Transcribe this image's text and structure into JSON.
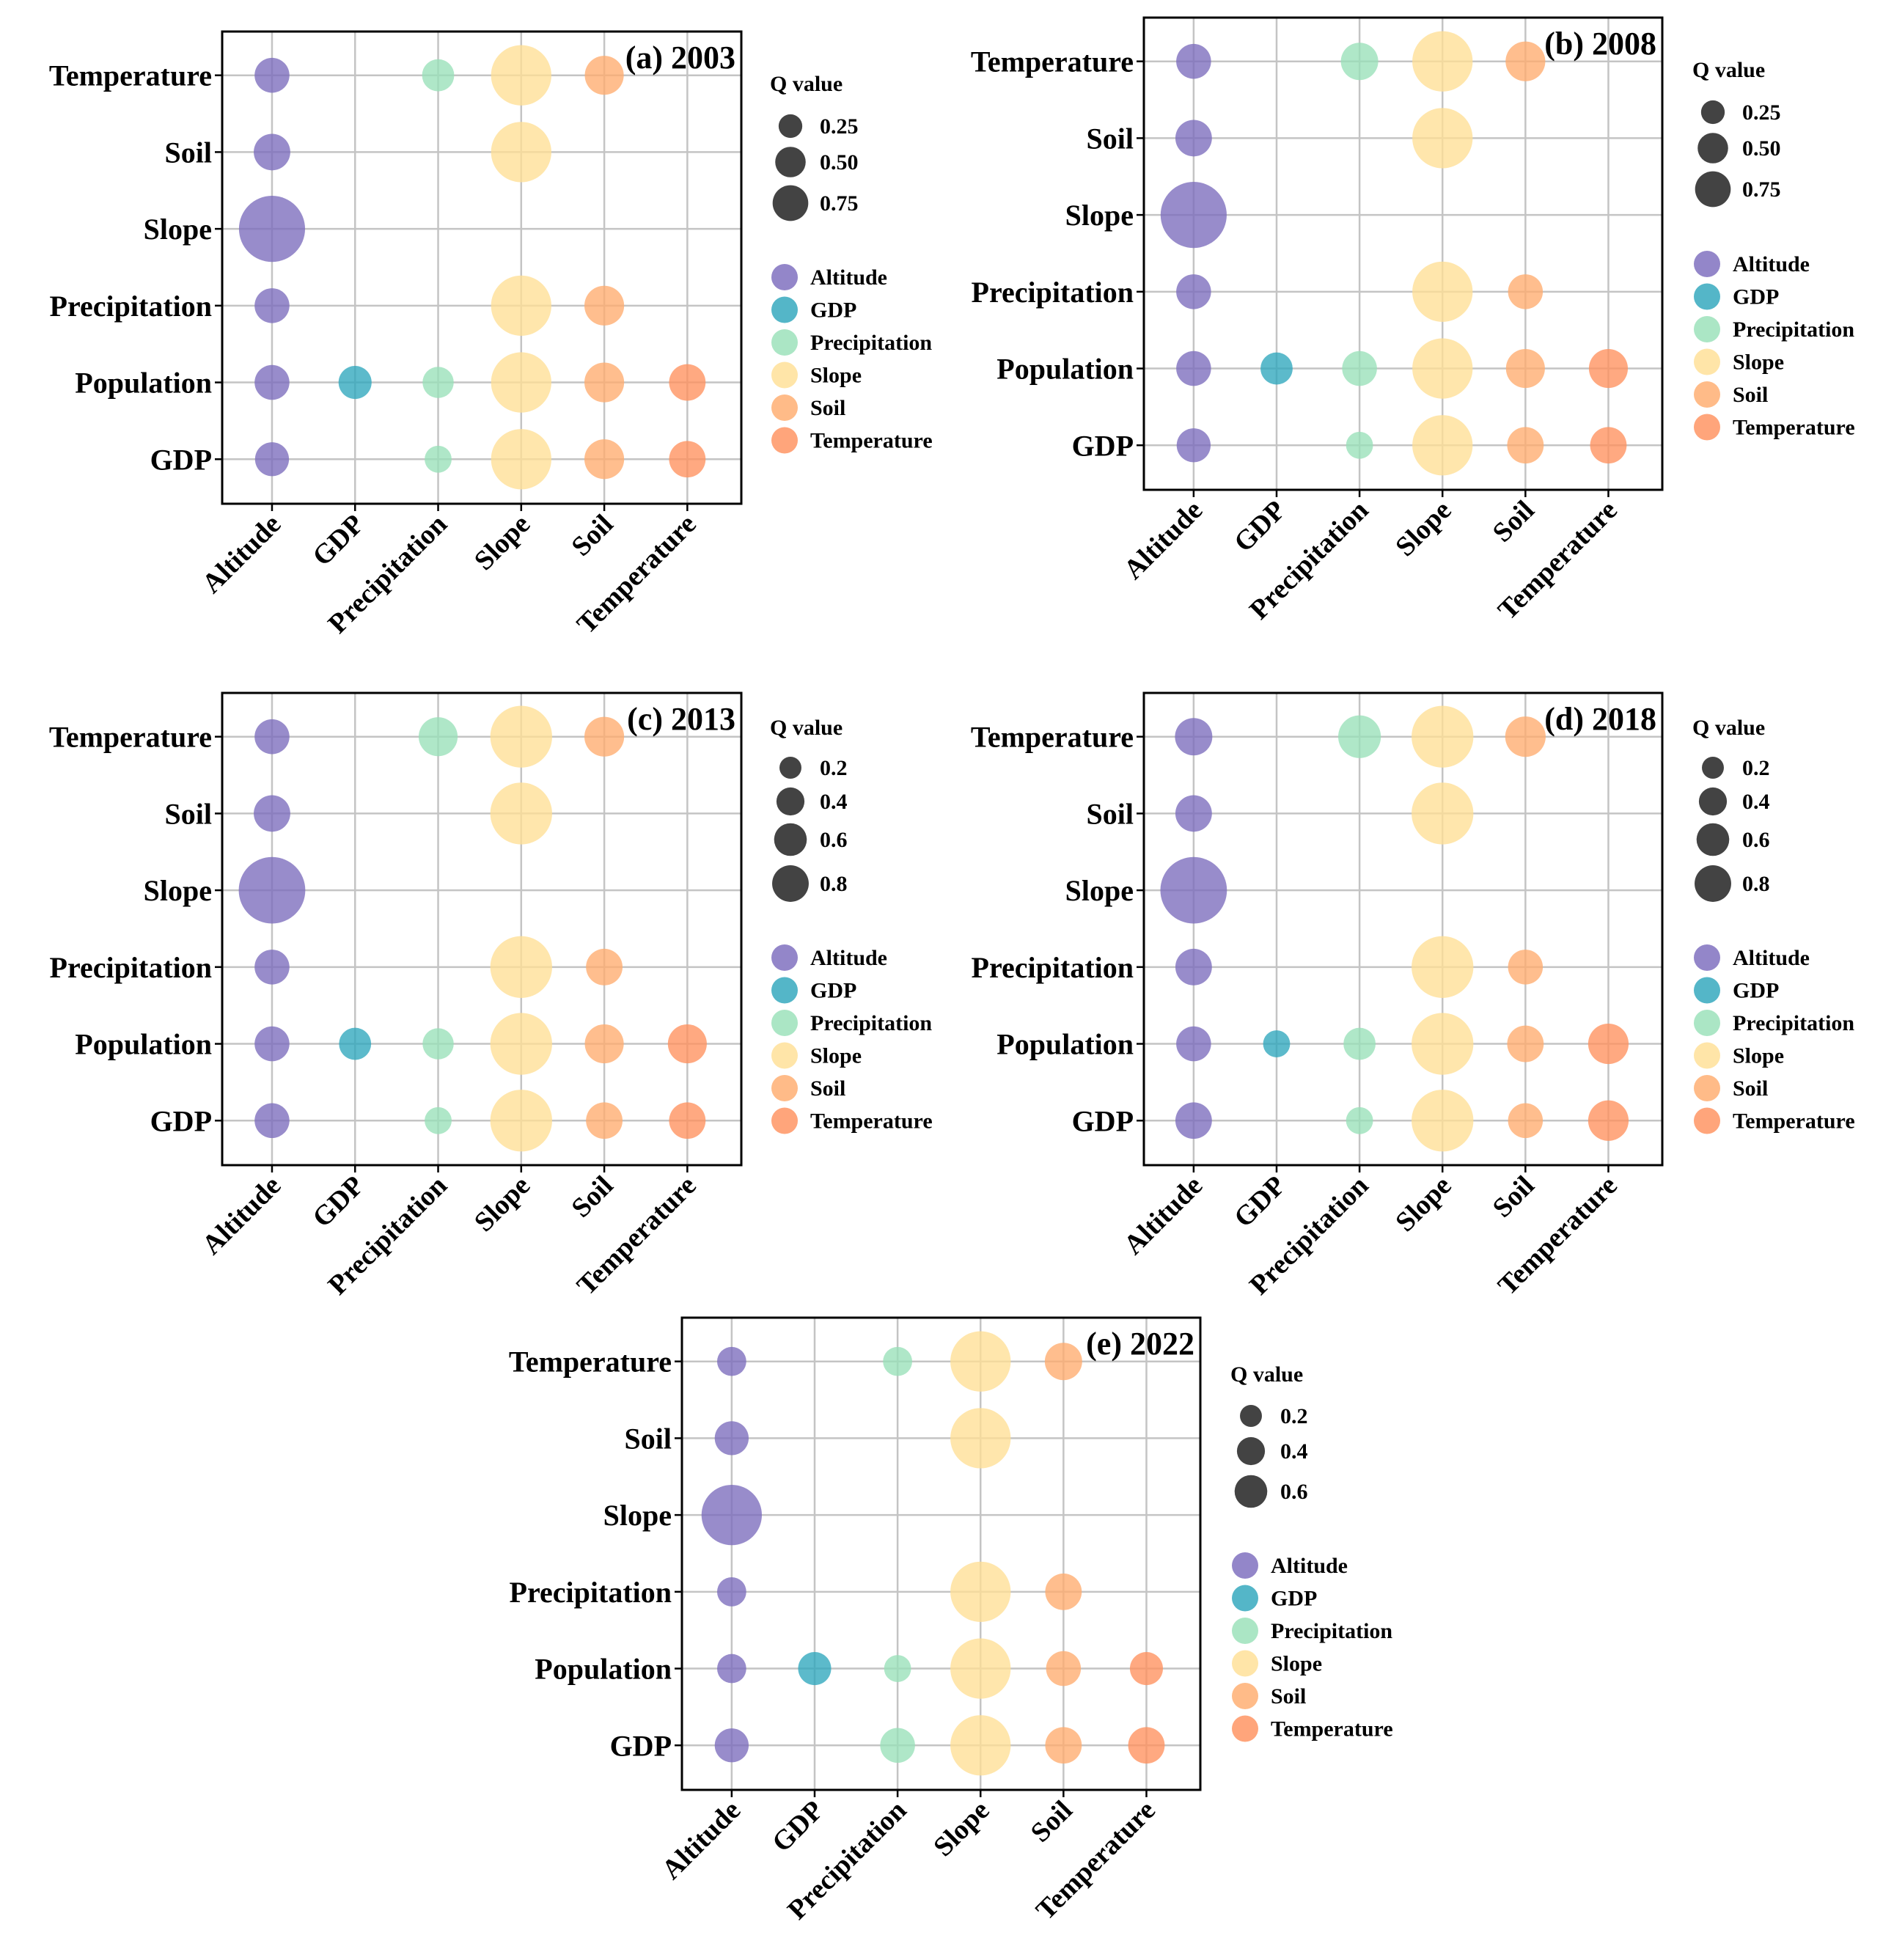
{
  "figure_title": "Interaction detector Q values by year",
  "colors": {
    "Altitude": "#7b6bbd",
    "GDP": "#2ea6bc",
    "Precipitation": "#99e0b8",
    "Slope": "#ffdf95",
    "Soil": "#ffac6e",
    "Temperature": "#ff915e",
    "size_legend_fill": "#333333"
  },
  "chart_data": [
    {
      "type": "scatter",
      "subtype": "bubble",
      "title": "(a) 2003",
      "x_categories": [
        "Altitude",
        "GDP",
        "Precipitation",
        "Slope",
        "Soil",
        "Temperature"
      ],
      "y_categories": [
        "GDP",
        "Population",
        "Precipitation",
        "Slope",
        "Soil",
        "Temperature"
      ],
      "size_legend": {
        "title": "Q value",
        "values": [
          0.25,
          0.5,
          0.75
        ],
        "labels": [
          "0.25",
          "0.50",
          "0.75"
        ]
      },
      "color_legend": [
        "Altitude",
        "GDP",
        "Precipitation",
        "Slope",
        "Soil",
        "Temperature"
      ],
      "points": [
        {
          "x": "Altitude",
          "y": "Temperature",
          "q": 0.2
        },
        {
          "x": "Precipitation",
          "y": "Temperature",
          "q": 0.17
        },
        {
          "x": "Slope",
          "y": "Temperature",
          "q": 0.6
        },
        {
          "x": "Soil",
          "y": "Temperature",
          "q": 0.25
        },
        {
          "x": "Altitude",
          "y": "Soil",
          "q": 0.22
        },
        {
          "x": "Slope",
          "y": "Soil",
          "q": 0.6
        },
        {
          "x": "Altitude",
          "y": "Slope",
          "q": 0.72
        },
        {
          "x": "Altitude",
          "y": "Precipitation",
          "q": 0.2
        },
        {
          "x": "Slope",
          "y": "Precipitation",
          "q": 0.6
        },
        {
          "x": "Soil",
          "y": "Precipitation",
          "q": 0.26
        },
        {
          "x": "Altitude",
          "y": "Population",
          "q": 0.2
        },
        {
          "x": "GDP",
          "y": "Population",
          "q": 0.18
        },
        {
          "x": "Precipitation",
          "y": "Population",
          "q": 0.16
        },
        {
          "x": "Slope",
          "y": "Population",
          "q": 0.6
        },
        {
          "x": "Soil",
          "y": "Population",
          "q": 0.26
        },
        {
          "x": "Temperature",
          "y": "Population",
          "q": 0.22
        },
        {
          "x": "Altitude",
          "y": "GDP",
          "q": 0.19
        },
        {
          "x": "Precipitation",
          "y": "GDP",
          "q": 0.12
        },
        {
          "x": "Slope",
          "y": "GDP",
          "q": 0.6
        },
        {
          "x": "Soil",
          "y": "GDP",
          "q": 0.26
        },
        {
          "x": "Temperature",
          "y": "GDP",
          "q": 0.22
        }
      ]
    },
    {
      "type": "scatter",
      "subtype": "bubble",
      "title": "(b) 2008",
      "x_categories": [
        "Altitude",
        "GDP",
        "Precipitation",
        "Slope",
        "Soil",
        "Temperature"
      ],
      "y_categories": [
        "GDP",
        "Population",
        "Precipitation",
        "Slope",
        "Soil",
        "Temperature"
      ],
      "size_legend": {
        "title": "Q value",
        "values": [
          0.25,
          0.5,
          0.75
        ],
        "labels": [
          "0.25",
          "0.50",
          "0.75"
        ]
      },
      "color_legend": [
        "Altitude",
        "GDP",
        "Precipitation",
        "Slope",
        "Soil",
        "Temperature"
      ],
      "points": [
        {
          "x": "Altitude",
          "y": "Temperature",
          "q": 0.2
        },
        {
          "x": "Precipitation",
          "y": "Temperature",
          "q": 0.23
        },
        {
          "x": "Slope",
          "y": "Temperature",
          "q": 0.6
        },
        {
          "x": "Soil",
          "y": "Temperature",
          "q": 0.26
        },
        {
          "x": "Altitude",
          "y": "Soil",
          "q": 0.22
        },
        {
          "x": "Slope",
          "y": "Soil",
          "q": 0.6
        },
        {
          "x": "Altitude",
          "y": "Slope",
          "q": 0.72
        },
        {
          "x": "Altitude",
          "y": "Precipitation",
          "q": 0.2
        },
        {
          "x": "Slope",
          "y": "Precipitation",
          "q": 0.6
        },
        {
          "x": "Soil",
          "y": "Precipitation",
          "q": 0.2
        },
        {
          "x": "Altitude",
          "y": "Population",
          "q": 0.2
        },
        {
          "x": "GDP",
          "y": "Population",
          "q": 0.17
        },
        {
          "x": "Precipitation",
          "y": "Population",
          "q": 0.2
        },
        {
          "x": "Slope",
          "y": "Population",
          "q": 0.6
        },
        {
          "x": "Soil",
          "y": "Population",
          "q": 0.25
        },
        {
          "x": "Temperature",
          "y": "Population",
          "q": 0.25
        },
        {
          "x": "Altitude",
          "y": "GDP",
          "q": 0.19
        },
        {
          "x": "Precipitation",
          "y": "GDP",
          "q": 0.12
        },
        {
          "x": "Slope",
          "y": "GDP",
          "q": 0.6
        },
        {
          "x": "Soil",
          "y": "GDP",
          "q": 0.22
        },
        {
          "x": "Temperature",
          "y": "GDP",
          "q": 0.22
        }
      ]
    },
    {
      "type": "scatter",
      "subtype": "bubble",
      "title": "(c) 2013",
      "x_categories": [
        "Altitude",
        "GDP",
        "Precipitation",
        "Slope",
        "Soil",
        "Temperature"
      ],
      "y_categories": [
        "GDP",
        "Population",
        "Precipitation",
        "Slope",
        "Soil",
        "Temperature"
      ],
      "size_legend": {
        "title": "Q value",
        "values": [
          0.2,
          0.4,
          0.6,
          0.8
        ],
        "labels": [
          "0.2",
          "0.4",
          "0.6",
          "0.8"
        ]
      },
      "color_legend": [
        "Altitude",
        "GDP",
        "Precipitation",
        "Slope",
        "Soil",
        "Temperature"
      ],
      "points": [
        {
          "x": "Altitude",
          "y": "Temperature",
          "q": 0.2
        },
        {
          "x": "Precipitation",
          "y": "Temperature",
          "q": 0.25
        },
        {
          "x": "Slope",
          "y": "Temperature",
          "q": 0.63
        },
        {
          "x": "Soil",
          "y": "Temperature",
          "q": 0.26
        },
        {
          "x": "Altitude",
          "y": "Soil",
          "q": 0.22
        },
        {
          "x": "Slope",
          "y": "Soil",
          "q": 0.63
        },
        {
          "x": "Altitude",
          "y": "Slope",
          "q": 0.73
        },
        {
          "x": "Altitude",
          "y": "Precipitation",
          "q": 0.2
        },
        {
          "x": "Slope",
          "y": "Precipitation",
          "q": 0.63
        },
        {
          "x": "Soil",
          "y": "Precipitation",
          "q": 0.22
        },
        {
          "x": "Altitude",
          "y": "Population",
          "q": 0.2
        },
        {
          "x": "GDP",
          "y": "Population",
          "q": 0.17
        },
        {
          "x": "Precipitation",
          "y": "Population",
          "q": 0.16
        },
        {
          "x": "Slope",
          "y": "Population",
          "q": 0.63
        },
        {
          "x": "Soil",
          "y": "Population",
          "q": 0.25
        },
        {
          "x": "Temperature",
          "y": "Population",
          "q": 0.25
        },
        {
          "x": "Altitude",
          "y": "GDP",
          "q": 0.2
        },
        {
          "x": "Precipitation",
          "y": "GDP",
          "q": 0.12
        },
        {
          "x": "Slope",
          "y": "GDP",
          "q": 0.63
        },
        {
          "x": "Soil",
          "y": "GDP",
          "q": 0.22
        },
        {
          "x": "Temperature",
          "y": "GDP",
          "q": 0.22
        }
      ]
    },
    {
      "type": "scatter",
      "subtype": "bubble",
      "title": "(d) 2018",
      "x_categories": [
        "Altitude",
        "GDP",
        "Precipitation",
        "Slope",
        "Soil",
        "Temperature"
      ],
      "y_categories": [
        "GDP",
        "Population",
        "Precipitation",
        "Slope",
        "Soil",
        "Temperature"
      ],
      "size_legend": {
        "title": "Q value",
        "values": [
          0.2,
          0.4,
          0.6,
          0.8
        ],
        "labels": [
          "0.2",
          "0.4",
          "0.6",
          "0.8"
        ]
      },
      "color_legend": [
        "Altitude",
        "GDP",
        "Precipitation",
        "Slope",
        "Soil",
        "Temperature"
      ],
      "points": [
        {
          "x": "Altitude",
          "y": "Temperature",
          "q": 0.23
        },
        {
          "x": "Precipitation",
          "y": "Temperature",
          "q": 0.3
        },
        {
          "x": "Slope",
          "y": "Temperature",
          "q": 0.63
        },
        {
          "x": "Soil",
          "y": "Temperature",
          "q": 0.27
        },
        {
          "x": "Altitude",
          "y": "Soil",
          "q": 0.22
        },
        {
          "x": "Slope",
          "y": "Soil",
          "q": 0.63
        },
        {
          "x": "Altitude",
          "y": "Slope",
          "q": 0.73
        },
        {
          "x": "Altitude",
          "y": "Precipitation",
          "q": 0.22
        },
        {
          "x": "Slope",
          "y": "Precipitation",
          "q": 0.63
        },
        {
          "x": "Soil",
          "y": "Precipitation",
          "q": 0.2
        },
        {
          "x": "Altitude",
          "y": "Population",
          "q": 0.2
        },
        {
          "x": "GDP",
          "y": "Population",
          "q": 0.12
        },
        {
          "x": "Precipitation",
          "y": "Population",
          "q": 0.17
        },
        {
          "x": "Slope",
          "y": "Population",
          "q": 0.63
        },
        {
          "x": "Soil",
          "y": "Population",
          "q": 0.22
        },
        {
          "x": "Temperature",
          "y": "Population",
          "q": 0.27
        },
        {
          "x": "Altitude",
          "y": "GDP",
          "q": 0.22
        },
        {
          "x": "Precipitation",
          "y": "GDP",
          "q": 0.12
        },
        {
          "x": "Slope",
          "y": "GDP",
          "q": 0.63
        },
        {
          "x": "Soil",
          "y": "GDP",
          "q": 0.2
        },
        {
          "x": "Temperature",
          "y": "GDP",
          "q": 0.27
        }
      ]
    },
    {
      "type": "scatter",
      "subtype": "bubble",
      "title": "(e) 2022",
      "x_categories": [
        "Altitude",
        "GDP",
        "Precipitation",
        "Slope",
        "Soil",
        "Temperature"
      ],
      "y_categories": [
        "GDP",
        "Population",
        "Precipitation",
        "Slope",
        "Soil",
        "Temperature"
      ],
      "size_legend": {
        "title": "Q value",
        "values": [
          0.2,
          0.4,
          0.6
        ],
        "labels": [
          "0.2",
          "0.4",
          "0.6"
        ]
      },
      "color_legend": [
        "Altitude",
        "GDP",
        "Precipitation",
        "Slope",
        "Soil",
        "Temperature"
      ],
      "points": [
        {
          "x": "Altitude",
          "y": "Temperature",
          "q": 0.14
        },
        {
          "x": "Precipitation",
          "y": "Temperature",
          "q": 0.14
        },
        {
          "x": "Slope",
          "y": "Temperature",
          "q": 0.6
        },
        {
          "x": "Soil",
          "y": "Temperature",
          "q": 0.23
        },
        {
          "x": "Altitude",
          "y": "Soil",
          "q": 0.19
        },
        {
          "x": "Slope",
          "y": "Soil",
          "q": 0.6
        },
        {
          "x": "Altitude",
          "y": "Slope",
          "q": 0.6
        },
        {
          "x": "Altitude",
          "y": "Precipitation",
          "q": 0.14
        },
        {
          "x": "Slope",
          "y": "Precipitation",
          "q": 0.6
        },
        {
          "x": "Soil",
          "y": "Precipitation",
          "q": 0.22
        },
        {
          "x": "Altitude",
          "y": "Population",
          "q": 0.14
        },
        {
          "x": "GDP",
          "y": "Population",
          "q": 0.18
        },
        {
          "x": "Precipitation",
          "y": "Population",
          "q": 0.12
        },
        {
          "x": "Slope",
          "y": "Population",
          "q": 0.6
        },
        {
          "x": "Soil",
          "y": "Population",
          "q": 0.2
        },
        {
          "x": "Temperature",
          "y": "Population",
          "q": 0.18
        },
        {
          "x": "Altitude",
          "y": "GDP",
          "q": 0.19
        },
        {
          "x": "Precipitation",
          "y": "GDP",
          "q": 0.2
        },
        {
          "x": "Slope",
          "y": "GDP",
          "q": 0.6
        },
        {
          "x": "Soil",
          "y": "GDP",
          "q": 0.22
        },
        {
          "x": "Temperature",
          "y": "GDP",
          "q": 0.22
        }
      ]
    }
  ]
}
